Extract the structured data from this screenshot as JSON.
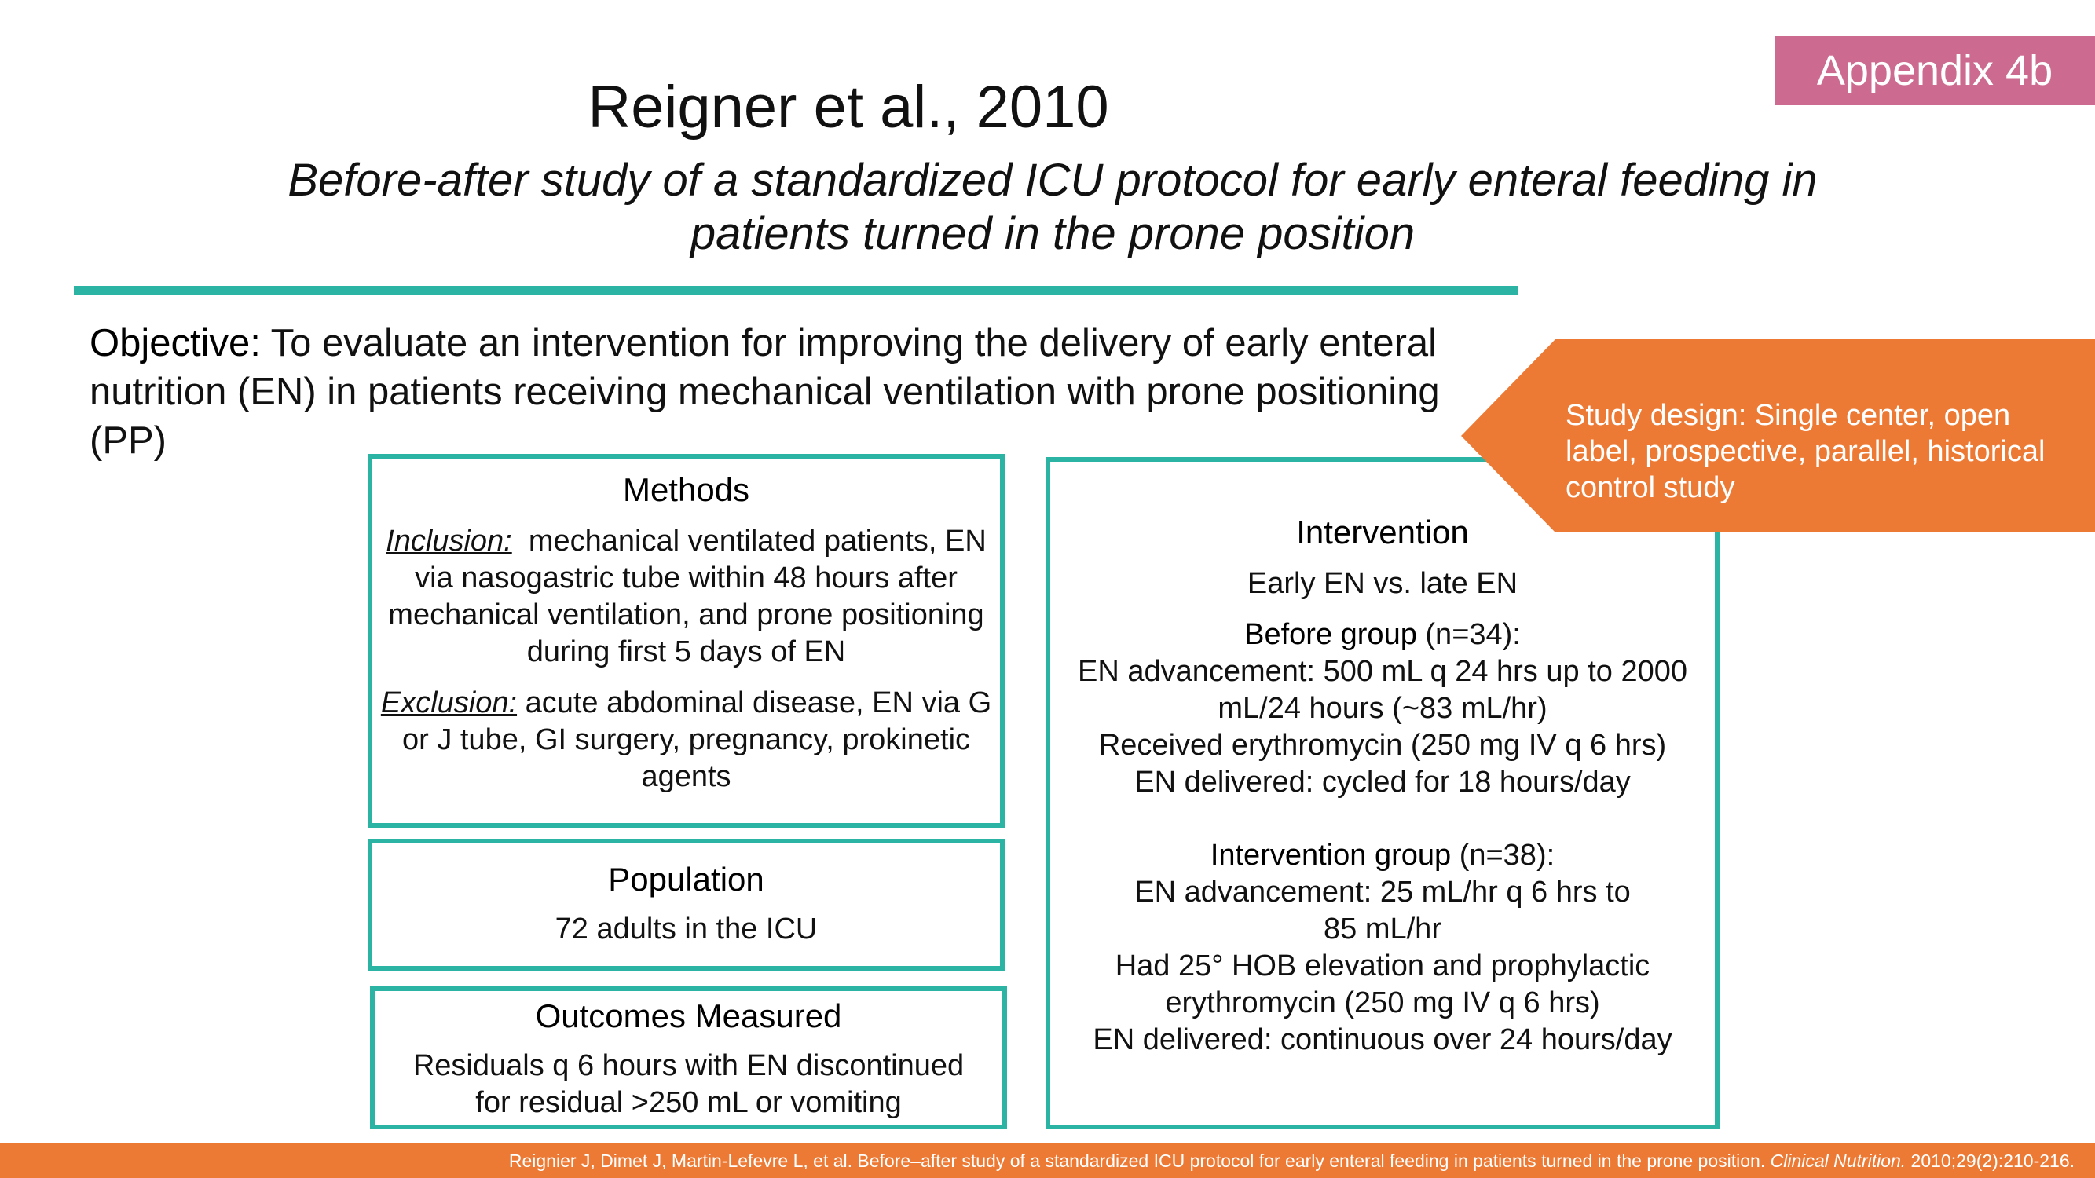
{
  "badge": "Appendix 4b",
  "title": "Reigner et al., 2010",
  "subtitle_line1": "Before-after study of a standardized ICU protocol for early enteral feeding in",
  "subtitle_line2": "patients turned in the prone position",
  "objective": {
    "label": "Objective:",
    "text": "To evaluate an intervention for improving the delivery of early enteral nutrition (EN) in patients receiving mechanical ventilation with prone positioning (PP)"
  },
  "study_design": {
    "label": "Study design",
    "text": ": Single center, open label, prospective, parallel, historical control study"
  },
  "methods": {
    "heading": "Methods",
    "inclusion_label": "Inclusion:",
    "inclusion_text": "  mechanical ventilated patients, EN via nasogastric tube within 48 hours after mechanical ventilation, and prone positioning during first 5 days of EN",
    "exclusion_label": "Exclusion:",
    "exclusion_text": " acute abdominal disease, EN via G or J tube, GI surgery, pregnancy, prokinetic agents"
  },
  "population": {
    "heading": "Population",
    "text": "72 adults in the ICU"
  },
  "outcomes": {
    "heading": "Outcomes Measured",
    "line1": "Residuals q 6 hours with EN discontinued",
    "line2": "for residual >250 mL or vomiting"
  },
  "intervention": {
    "heading": "Intervention",
    "comparison": "Early EN vs. late EN",
    "before_label": "Before group",
    "before_n": " (n=34):",
    "before_lines": [
      "EN advancement: 500 mL q 24 hrs up to 2000",
      "mL/24 hours (~83 mL/hr)",
      "Received erythromycin (250 mg IV q 6 hrs)",
      "EN delivered: cycled for 18 hours/day"
    ],
    "interv_label": "Intervention group",
    "interv_n": " (n=38):",
    "interv_lines": [
      "EN advancement: 25 mL/hr q 6 hrs to",
      "85 mL/hr",
      "Had 25° HOB elevation and prophylactic",
      "erythromycin (250 mg IV q 6 hrs)",
      "EN delivered: continuous over 24 hours/day"
    ]
  },
  "footer": {
    "citation": "Reignier J, Dimet J, Martin-Lefevre L, et al. Before–after study of a standardized ICU protocol for early enteral feeding in patients turned in the prone position. ",
    "journal": "Clinical Nutrition.",
    "details": " 2010;29(2):210-216."
  },
  "colors": {
    "accent_teal": "#2bb3a3",
    "accent_orange": "#ed7a34",
    "badge_pink": "#cc6a8f"
  }
}
